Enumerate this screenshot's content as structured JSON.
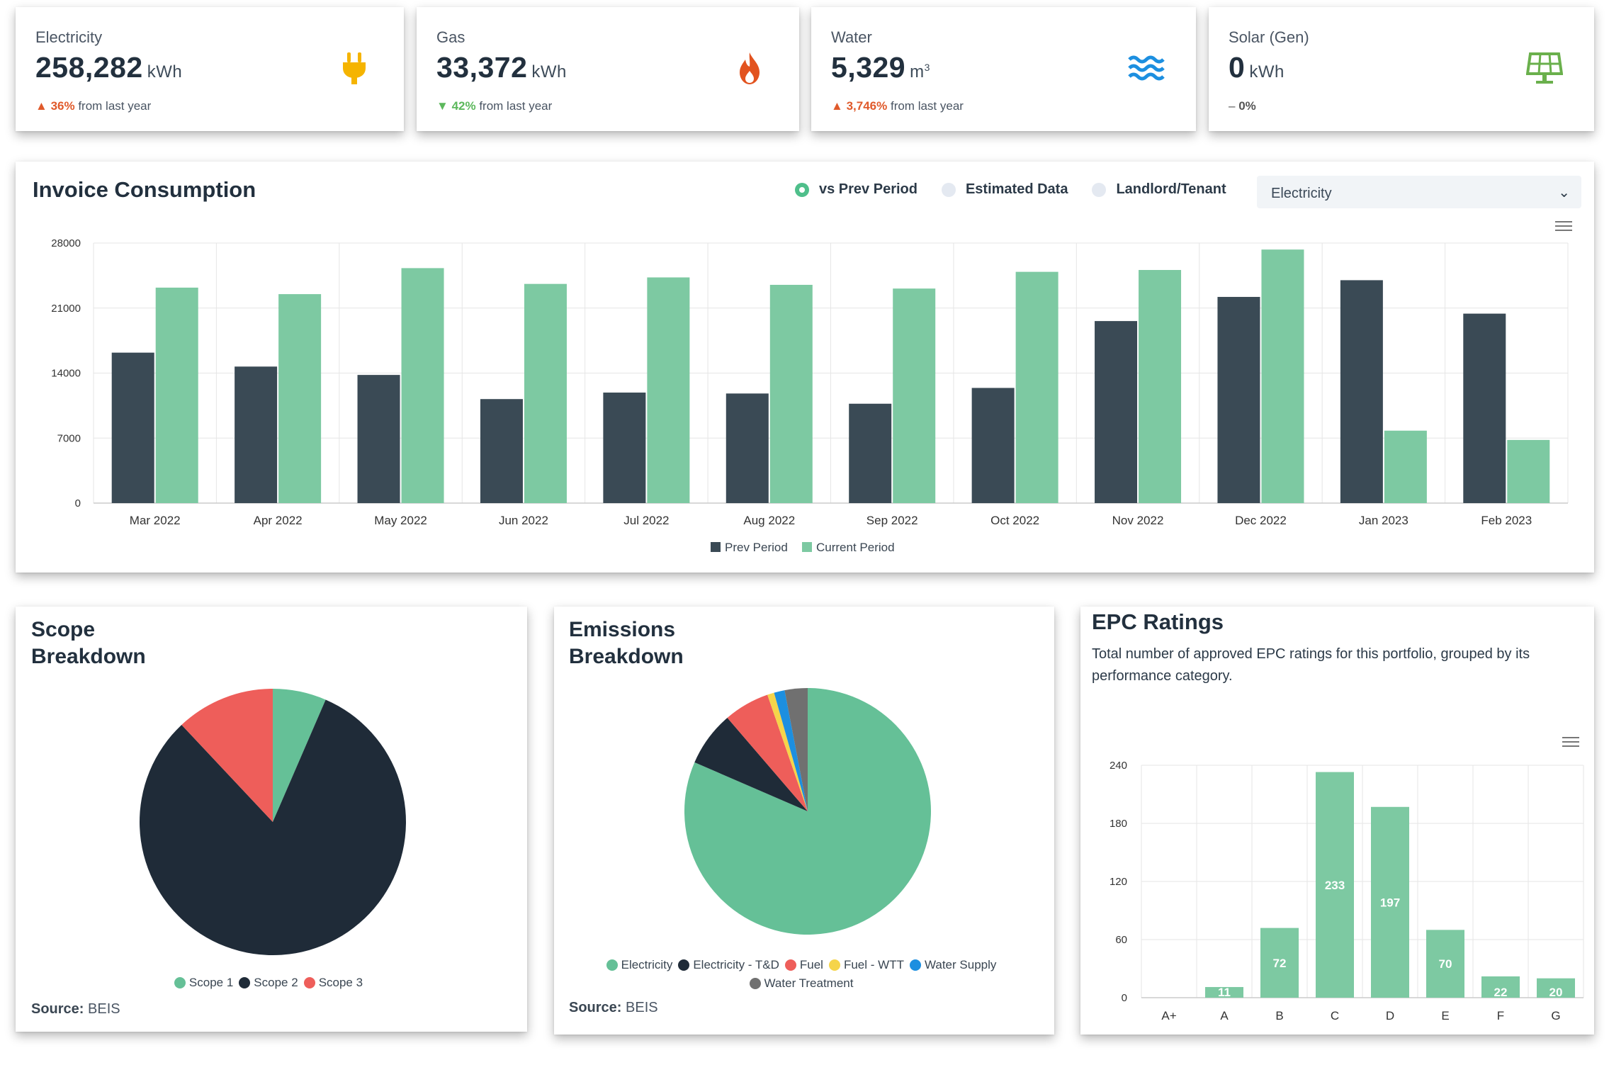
{
  "kpis": [
    {
      "label": "Electricity",
      "value": "258,282",
      "unit": "kWh",
      "change_pct": "36%",
      "change_text": "from last year",
      "direction": "up",
      "icon": "plug-icon"
    },
    {
      "label": "Gas",
      "value": "33,372",
      "unit": "kWh",
      "change_pct": "42%",
      "change_text": "from last year",
      "direction": "down",
      "icon": "flame-icon"
    },
    {
      "label": "Water",
      "value": "5,329",
      "unit": "m",
      "unit_sup": "3",
      "change_pct": "3,746%",
      "change_text": "from last year",
      "direction": "up",
      "icon": "waves-icon"
    },
    {
      "label": "Solar (Gen)",
      "value": "0",
      "unit": "kWh",
      "change_pct": "0%",
      "change_text": "",
      "direction": "flat",
      "icon": "solar-panel-icon"
    }
  ],
  "colors": {
    "dark": "#3a4a55",
    "green": "#7dc9a2",
    "pie_green": "#65c097",
    "pie_dark": "#1f2b38",
    "pie_red": "#ee5e5a",
    "pie_yellow": "#f5d44a",
    "pie_blue": "#1c8fe0",
    "pie_grey": "#707070",
    "up": "#e05a2b",
    "down": "#5cb85c"
  },
  "invoice": {
    "title": "Invoice Consumption",
    "options": [
      {
        "label": "vs Prev Period",
        "selected": true
      },
      {
        "label": "Estimated Data",
        "selected": false
      },
      {
        "label": "Landlord/Tenant",
        "selected": false
      }
    ],
    "select_value": "Electricity",
    "chart_data": {
      "type": "bar",
      "categories": [
        "Mar 2022",
        "Apr 2022",
        "May 2022",
        "Jun 2022",
        "Jul 2022",
        "Aug 2022",
        "Sep 2022",
        "Oct 2022",
        "Nov 2022",
        "Dec 2022",
        "Jan 2023",
        "Feb 2023"
      ],
      "series": [
        {
          "name": "Prev Period",
          "values": [
            16200,
            14700,
            13800,
            11200,
            11900,
            11800,
            10700,
            12400,
            19600,
            22200,
            24000,
            20400
          ]
        },
        {
          "name": "Current Period",
          "values": [
            23200,
            22500,
            25300,
            23600,
            24300,
            23500,
            23100,
            24900,
            25100,
            27300,
            7800,
            6800
          ]
        }
      ],
      "ylim": [
        0,
        28000
      ],
      "yticks": [
        0,
        7000,
        14000,
        21000,
        28000
      ],
      "grid": true,
      "legend": "bottom"
    }
  },
  "scope": {
    "title_line1": "Scope",
    "title_line2": "Breakdown",
    "source_label": "Source:",
    "source_value": "BEIS",
    "chart_data": {
      "type": "pie",
      "labels": [
        "Scope 1",
        "Scope 2",
        "Scope 3"
      ],
      "values": [
        6.5,
        81.5,
        12
      ],
      "legend": "bottom"
    }
  },
  "emissions": {
    "title_line1": "Emissions",
    "title_line2": "Breakdown",
    "source_label": "Source:",
    "source_value": "BEIS",
    "chart_data": {
      "type": "pie",
      "labels": [
        "Electricity",
        "Electricity - T&D",
        "Fuel",
        "Fuel - WTT",
        "Water Supply",
        "Water Treatment"
      ],
      "values": [
        81.5,
        7.2,
        6.0,
        0.9,
        1.4,
        3.0
      ],
      "legend": "bottom"
    }
  },
  "epc": {
    "title": "EPC Ratings",
    "description": "Total number of approved EPC ratings for this portfolio, grouped by its performance category.",
    "chart_data": {
      "type": "bar",
      "categories": [
        "A+",
        "A",
        "B",
        "C",
        "D",
        "E",
        "F",
        "G"
      ],
      "values": [
        0,
        11,
        72,
        233,
        197,
        70,
        22,
        20
      ],
      "data_labels": [
        "",
        "11",
        "72",
        "233",
        "197",
        "70",
        "22",
        "20"
      ],
      "ylim": [
        0,
        240
      ],
      "yticks": [
        0,
        60,
        120,
        180,
        240
      ],
      "grid": true
    }
  }
}
